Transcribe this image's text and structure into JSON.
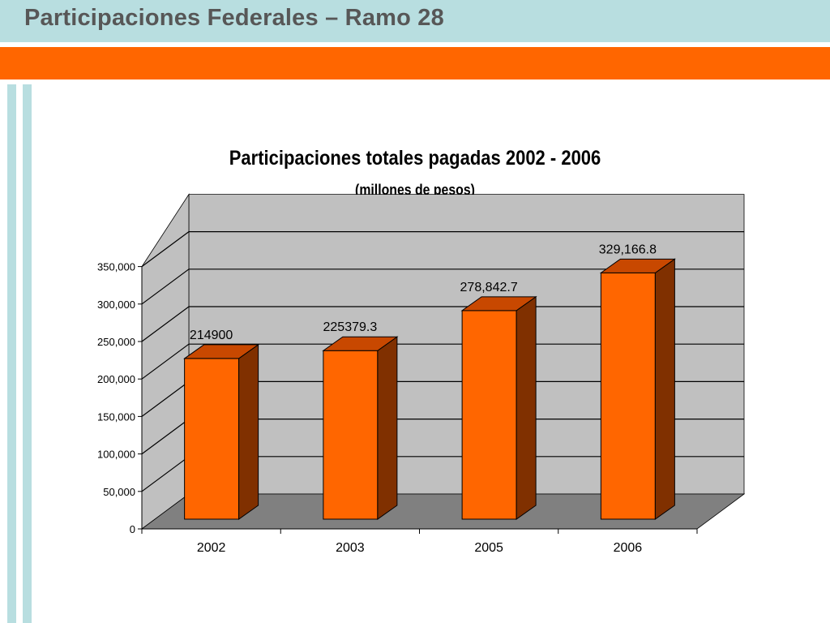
{
  "slide": {
    "title": "Participaciones Federales – Ramo 28"
  },
  "colors": {
    "title_band": "#b8dee0",
    "accent_band": "#ff6600",
    "bar_front": "#ff6600",
    "bar_top": "#c84800",
    "bar_side": "#803000",
    "wall": "#c0c0c0",
    "floor": "#808080"
  },
  "chart_data": {
    "type": "bar",
    "style": "3d-column",
    "title": "Participaciones totales pagadas 2002 - 2006",
    "subtitle": "(millones de pesos)",
    "categories": [
      "2002",
      "2003",
      "2005",
      "2006"
    ],
    "values": [
      214900,
      225379.3,
      278842.7,
      329166.8
    ],
    "data_labels": [
      "214900",
      "225379.3",
      "278,842.7",
      "329,166.8"
    ],
    "ylim": [
      0,
      350000
    ],
    "yticks": [
      0,
      50000,
      100000,
      150000,
      200000,
      250000,
      300000,
      350000
    ],
    "ytick_labels": [
      "0",
      "50,000",
      "100,000",
      "150,000",
      "200,000",
      "250,000",
      "300,000",
      "350,000"
    ],
    "xlabel": "",
    "ylabel": "",
    "grid": true,
    "legend": "none"
  }
}
